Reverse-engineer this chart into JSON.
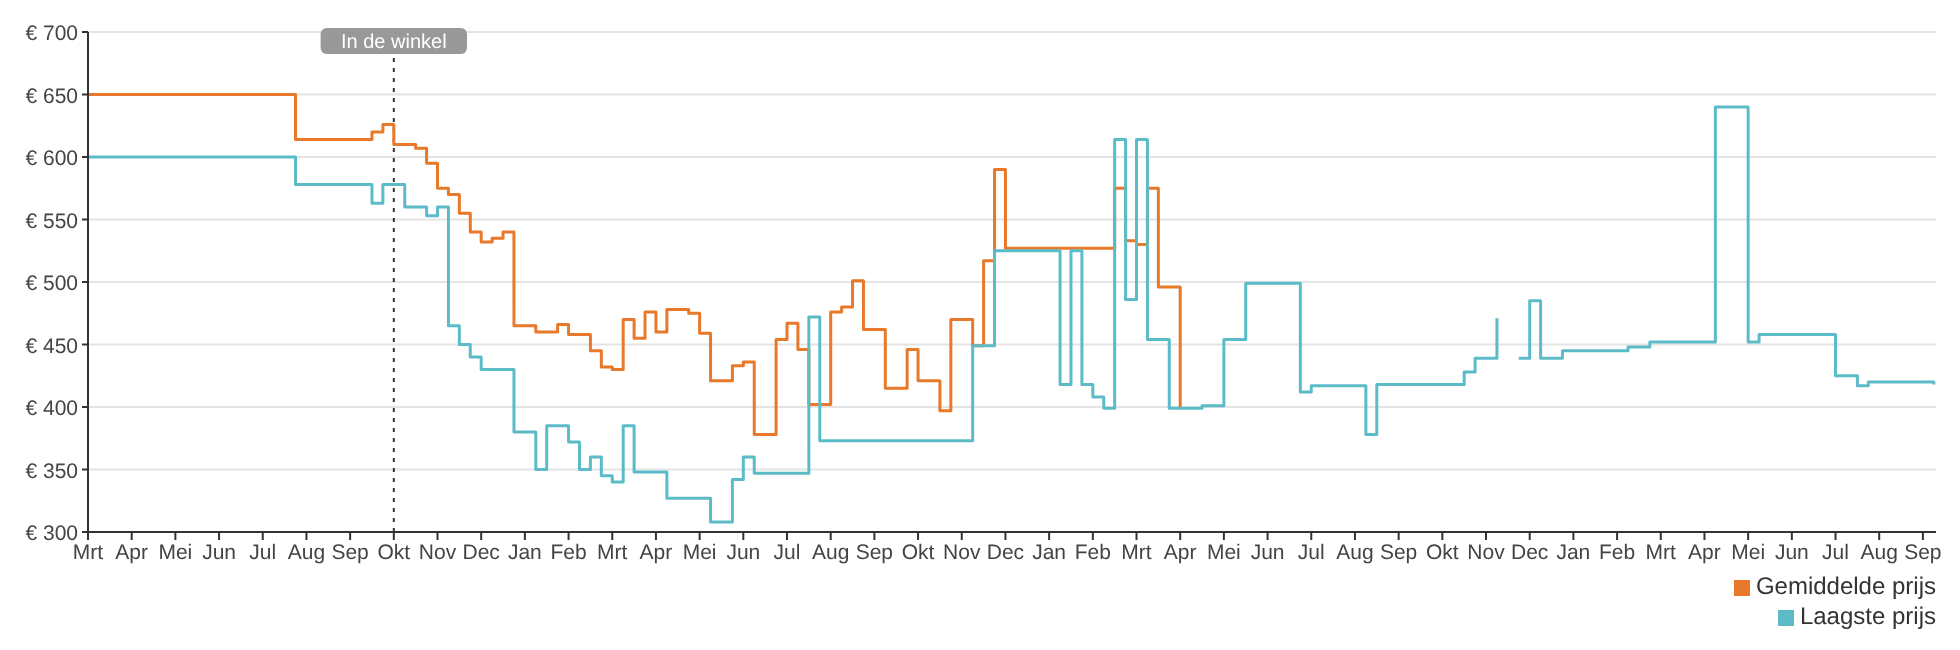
{
  "chart_data": {
    "type": "step",
    "categories": [
      "Mrt",
      null,
      null,
      null,
      "Apr",
      null,
      null,
      null,
      "Mei",
      null,
      null,
      null,
      "Jun",
      null,
      null,
      null,
      "Jul",
      null,
      null,
      null,
      "Aug",
      null,
      null,
      null,
      "Sep",
      null,
      null,
      null,
      "Okt",
      null,
      null,
      null,
      "Nov",
      null,
      null,
      null,
      "Dec",
      null,
      null,
      null,
      "Jan",
      null,
      null,
      null,
      "Feb",
      null,
      null,
      null,
      "Mrt",
      null,
      null,
      null,
      "Apr",
      null,
      null,
      null,
      "Mei",
      null,
      null,
      null,
      "Jun",
      null,
      null,
      null,
      "Jul",
      null,
      null,
      null,
      "Aug",
      null,
      null,
      null,
      "Sep",
      null,
      null,
      null,
      "Okt",
      null,
      null,
      null,
      "Nov",
      null,
      null,
      null,
      "Dec",
      null,
      null,
      null,
      "Jan",
      null,
      null,
      null,
      "Feb",
      null,
      null,
      null,
      "Mrt",
      null,
      null,
      null,
      "Apr",
      null,
      null,
      null,
      "Mei",
      null,
      null,
      null,
      "Jun",
      null,
      null,
      null,
      "Jul",
      null,
      null,
      null,
      "Aug",
      null,
      null,
      null,
      "Sep",
      null,
      null,
      null,
      "Okt",
      null,
      null,
      null,
      "Nov",
      null,
      null,
      null,
      "Dec",
      null,
      null,
      null,
      "Jan",
      null,
      null,
      null,
      "Feb",
      null,
      null,
      null,
      "Mrt",
      null,
      null,
      null,
      "Apr",
      null,
      null,
      null,
      "Mei",
      null,
      null,
      null,
      "Jun",
      null,
      null,
      null,
      "Jul",
      null,
      null,
      null,
      "Aug",
      null,
      null,
      null,
      "Sep",
      null
    ],
    "series": [
      {
        "name": "Gemiddelde prijs",
        "color": "#e8782a",
        "values": [
          650,
          650,
          650,
          650,
          650,
          650,
          650,
          650,
          650,
          650,
          650,
          650,
          650,
          650,
          650,
          650,
          650,
          650,
          650,
          614,
          614,
          614,
          614,
          614,
          614,
          614,
          620,
          626,
          610,
          610,
          607,
          595,
          575,
          570,
          555,
          540,
          532,
          535,
          540,
          465,
          465,
          460,
          460,
          466,
          458,
          458,
          445,
          432,
          430,
          470,
          455,
          476,
          460,
          478,
          478,
          475,
          459,
          421,
          421,
          433,
          436,
          378,
          378,
          454,
          467,
          446,
          402,
          402,
          476,
          480,
          501,
          462,
          462,
          415,
          415,
          446,
          421,
          421,
          397,
          470,
          470,
          449,
          517,
          590,
          527,
          527,
          527,
          527,
          527,
          527,
          527,
          527,
          527,
          527,
          575,
          533,
          530,
          575,
          496,
          496,
          399,
          null,
          null,
          null,
          null,
          null,
          null,
          null,
          null,
          null,
          null,
          null,
          null,
          null,
          null,
          null,
          null,
          null,
          null,
          null,
          null,
          null,
          null,
          null,
          null,
          null,
          null,
          null,
          null,
          null,
          null,
          null,
          null,
          null,
          null,
          null,
          null,
          null,
          null,
          null,
          null,
          null,
          null,
          null,
          null,
          null,
          null,
          null,
          null,
          null,
          null,
          null,
          null,
          null,
          null,
          null,
          null,
          null,
          null,
          null,
          null,
          null,
          null,
          null,
          null,
          null,
          null,
          null,
          null,
          null
        ]
      },
      {
        "name": "Laagste prijs",
        "color": "#5bbcc8",
        "values": [
          600,
          600,
          600,
          600,
          600,
          600,
          600,
          600,
          600,
          600,
          600,
          600,
          600,
          600,
          600,
          600,
          600,
          600,
          600,
          578,
          578,
          578,
          578,
          578,
          578,
          578,
          563,
          578,
          578,
          560,
          560,
          553,
          560,
          465,
          450,
          440,
          430,
          430,
          430,
          380,
          380,
          350,
          385,
          385,
          372,
          350,
          360,
          345,
          340,
          385,
          348,
          348,
          348,
          327,
          327,
          327,
          327,
          308,
          308,
          342,
          360,
          347,
          347,
          347,
          347,
          347,
          472,
          373,
          373,
          373,
          373,
          373,
          373,
          373,
          373,
          373,
          373,
          373,
          373,
          373,
          373,
          449,
          449,
          525,
          525,
          525,
          525,
          525,
          525,
          418,
          525,
          418,
          408,
          399,
          614,
          486,
          614,
          454,
          454,
          399,
          399,
          399,
          401,
          401,
          454,
          454,
          499,
          499,
          499,
          499,
          499,
          412,
          417,
          417,
          417,
          417,
          417,
          378,
          418,
          418,
          418,
          418,
          418,
          418,
          418,
          418,
          428,
          439,
          439,
          471,
          null,
          439,
          485,
          439,
          439,
          445,
          445,
          445,
          445,
          445,
          445,
          448,
          448,
          452,
          452,
          452,
          452,
          452,
          452,
          640,
          640,
          640,
          452,
          458,
          458,
          458,
          458,
          458,
          458,
          458,
          425,
          425,
          417,
          420,
          420,
          420,
          420,
          420,
          420,
          418
        ]
      }
    ],
    "ylim": [
      300,
      700
    ],
    "yticks": [
      {
        "value": 300,
        "label": "€ 300"
      },
      {
        "value": 350,
        "label": "€ 350"
      },
      {
        "value": 400,
        "label": "€ 400"
      },
      {
        "value": 450,
        "label": "€ 450"
      },
      {
        "value": 500,
        "label": "€ 500"
      },
      {
        "value": 550,
        "label": "€ 550"
      },
      {
        "value": 600,
        "label": "€ 600"
      },
      {
        "value": 650,
        "label": "€ 650"
      },
      {
        "value": 700,
        "label": "€ 700"
      }
    ],
    "ref_lines": [
      {
        "axis": "x",
        "value": "Okt",
        "label": "In de winkel",
        "color": "#333333",
        "line_style": "dotted"
      }
    ],
    "grid": "y",
    "legend": "bottom right",
    "marker": "none",
    "line_style": "solid"
  }
}
